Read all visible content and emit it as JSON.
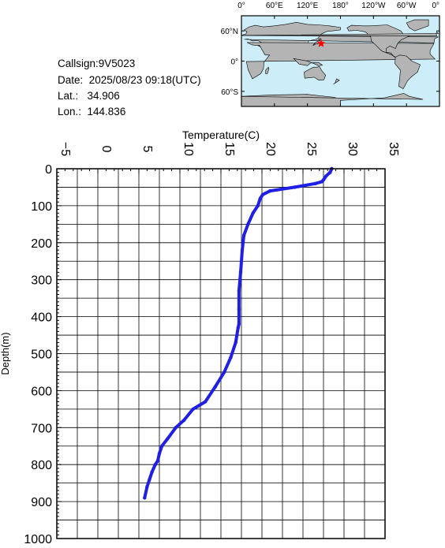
{
  "station": {
    "callsign": "Callsign:9V5023",
    "date": "Date:  2025/08/23 09:18(UTC)",
    "lat": "Lat.:   34.906",
    "lon": "Lon.:  144.836"
  },
  "map": {
    "lon_labels": [
      "0°",
      "60°E",
      "120°E",
      "180°",
      "120°W",
      "60°W",
      "0°"
    ],
    "lat_labels": [
      "60°N",
      "0°",
      "60°S"
    ],
    "ocean_color": "#cdeef8",
    "land_color": "#b4b4b4",
    "marker": {
      "lat": 34.906,
      "lon": 144.836,
      "color": "#ff0000",
      "icon": "star-icon"
    }
  },
  "chart_data": {
    "type": "line",
    "xlabel": "Temperature(C)",
    "ylabel": "Depth(m)",
    "xlim": [
      -5,
      35
    ],
    "ylim": [
      0,
      1000
    ],
    "x_ticks": [
      -5,
      0,
      5,
      10,
      15,
      20,
      25,
      30,
      35
    ],
    "y_ticks": [
      0,
      100,
      200,
      300,
      400,
      500,
      600,
      700,
      800,
      900,
      1000
    ],
    "grid": true,
    "line_color": "#1f1fe6",
    "series": [
      {
        "name": "",
        "x": [
          28.5,
          28.3,
          27.8,
          27.5,
          27.3,
          26.5,
          24.0,
          21.0,
          20.1,
          19.8,
          19.5,
          18.9,
          18.3,
          17.8,
          17.6,
          17.4,
          17.2,
          17.2,
          17.2,
          17.1,
          16.8,
          16.2,
          15.4,
          14.3,
          13.1,
          11.6,
          10.5,
          9.5,
          8.5,
          7.8,
          7.5,
          7.3,
          7.0,
          6.6,
          6.3,
          6.0,
          5.7
        ],
        "y": [
          0,
          10,
          20,
          30,
          35,
          40,
          50,
          60,
          70,
          80,
          100,
          120,
          150,
          180,
          220,
          280,
          330,
          380,
          420,
          430,
          470,
          510,
          550,
          590,
          630,
          650,
          680,
          700,
          730,
          750,
          770,
          790,
          800,
          820,
          840,
          860,
          890
        ]
      }
    ]
  }
}
